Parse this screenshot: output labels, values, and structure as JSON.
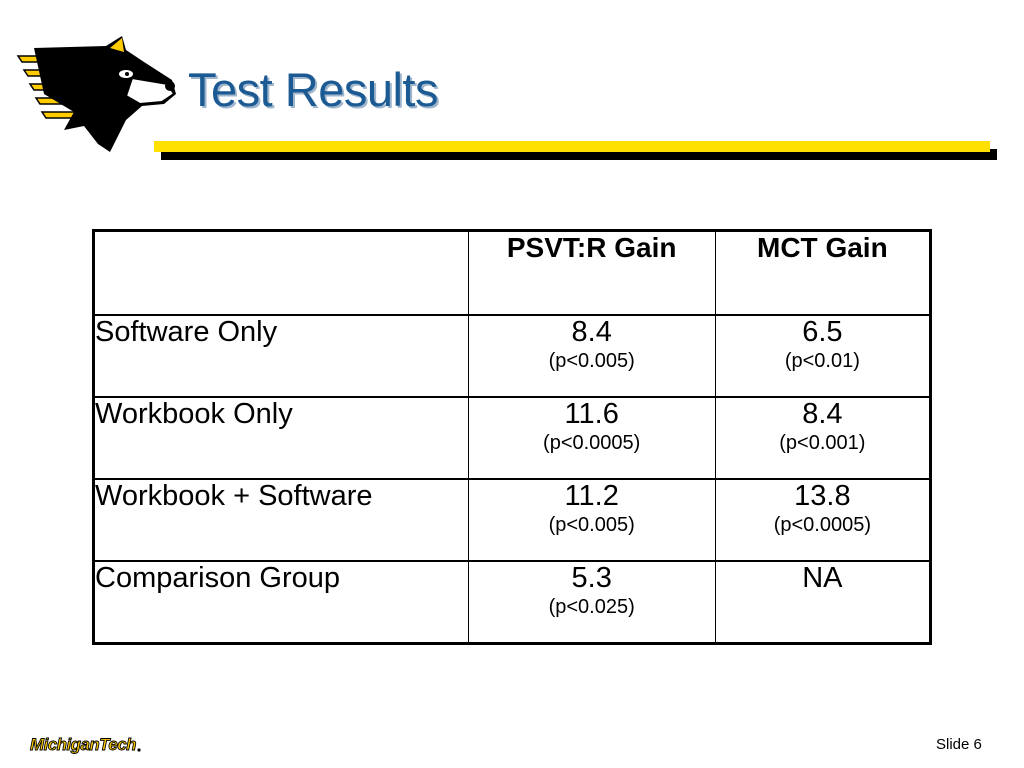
{
  "slide": {
    "title": "Test Results",
    "footer_logo_text": "MichiganTech",
    "slide_number": "Slide 6"
  },
  "table": {
    "headers": [
      "",
      "PSVT:R Gain",
      "MCT Gain"
    ],
    "rows": [
      {
        "label": "Software Only",
        "psvt_value": "8.4",
        "psvt_p": "(p<0.005)",
        "mct_value": "6.5",
        "mct_p": "(p<0.01)"
      },
      {
        "label": "Workbook Only",
        "psvt_value": "11.6",
        "psvt_p": "(p<0.0005)",
        "mct_value": "8.4",
        "mct_p": "(p<0.001)"
      },
      {
        "label": "Workbook + Software",
        "psvt_value": "11.2",
        "psvt_p": "(p<0.005)",
        "mct_value": "13.8",
        "mct_p": "(p<0.0005)"
      },
      {
        "label": "Comparison Group",
        "psvt_value": "5.3",
        "psvt_p": "(p<0.025)",
        "mct_value": "NA",
        "mct_p": ""
      }
    ]
  },
  "colors": {
    "title": "#1b5a93",
    "accent_bar": "#ffe000",
    "bar_shadow": "#000000",
    "logo_yellow": "#ffcc00"
  },
  "icons": {
    "header_logo": "husky-mascot-logo",
    "footer_logo": "michigan-tech-wordmark"
  }
}
